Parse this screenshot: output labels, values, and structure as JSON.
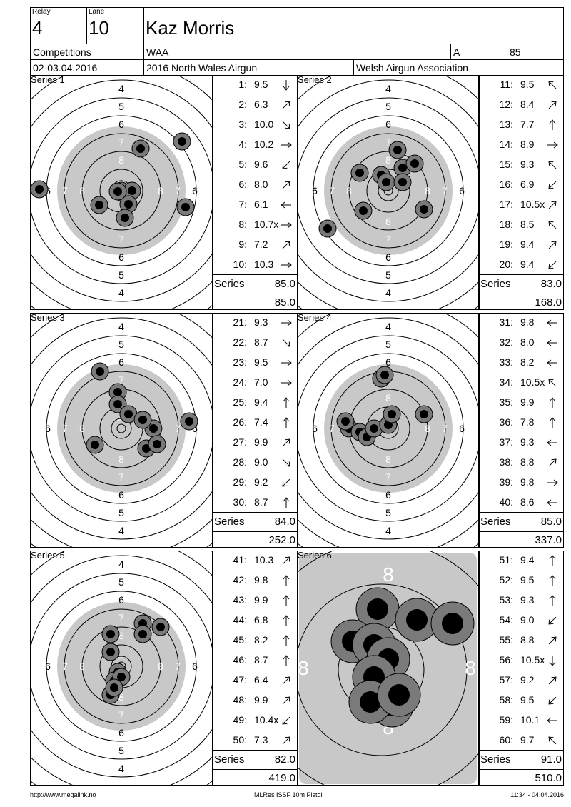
{
  "header": {
    "relay_label": "Relay",
    "relay_value": "4",
    "lane_label": "Lane",
    "lane_value": "10",
    "shooter_name": "Kaz Morris",
    "competitions_label": "Competitions",
    "competition_code": "WAA",
    "class_code": "A",
    "class_score": "85",
    "date": "02-03.04.2016",
    "event_name": "2016 North Wales Airgun",
    "organizer": "Welsh Airgun Association"
  },
  "series": [
    {
      "label": "Series 1",
      "series_label": "Series",
      "series_total": "85.0",
      "cumulative": "85.0",
      "shots": [
        {
          "n": "1:",
          "v": "9.5",
          "dir": "S"
        },
        {
          "n": "2:",
          "v": "6.3",
          "dir": "NE"
        },
        {
          "n": "3:",
          "v": "10.0",
          "dir": "SE"
        },
        {
          "n": "4:",
          "v": "10.2",
          "dir": "E"
        },
        {
          "n": "5:",
          "v": "9.6",
          "dir": "SW"
        },
        {
          "n": "6:",
          "v": "8.0",
          "dir": "NE"
        },
        {
          "n": "7:",
          "v": "6.1",
          "dir": "W"
        },
        {
          "n": "8:",
          "v": "10.7x",
          "dir": "E"
        },
        {
          "n": "9:",
          "v": "7.2",
          "dir": "NE"
        },
        {
          "n": "10:",
          "v": "10.3",
          "dir": "E"
        }
      ]
    },
    {
      "label": "Series 2",
      "series_label": "Series",
      "series_total": "83.0",
      "cumulative": "168.0",
      "shots": [
        {
          "n": "11:",
          "v": "9.5",
          "dir": "NW"
        },
        {
          "n": "12:",
          "v": "8.4",
          "dir": "NE"
        },
        {
          "n": "13:",
          "v": "7.7",
          "dir": "N"
        },
        {
          "n": "14:",
          "v": "8.9",
          "dir": "E"
        },
        {
          "n": "15:",
          "v": "9.3",
          "dir": "NW"
        },
        {
          "n": "16:",
          "v": "6.9",
          "dir": "SW"
        },
        {
          "n": "17:",
          "v": "10.5x",
          "dir": "NE"
        },
        {
          "n": "18:",
          "v": "8.5",
          "dir": "NW"
        },
        {
          "n": "19:",
          "v": "9.4",
          "dir": "NE"
        },
        {
          "n": "20:",
          "v": "9.4",
          "dir": "SW"
        }
      ]
    },
    {
      "label": "Series 3",
      "series_label": "Series",
      "series_total": "84.0",
      "cumulative": "252.0",
      "shots": [
        {
          "n": "21:",
          "v": "9.3",
          "dir": "E"
        },
        {
          "n": "22:",
          "v": "8.7",
          "dir": "SE"
        },
        {
          "n": "23:",
          "v": "9.5",
          "dir": "E"
        },
        {
          "n": "24:",
          "v": "7.0",
          "dir": "E"
        },
        {
          "n": "25:",
          "v": "9.4",
          "dir": "N"
        },
        {
          "n": "26:",
          "v": "7.4",
          "dir": "N"
        },
        {
          "n": "27:",
          "v": "9.9",
          "dir": "NE"
        },
        {
          "n": "28:",
          "v": "9.0",
          "dir": "SE"
        },
        {
          "n": "29:",
          "v": "9.2",
          "dir": "SW"
        },
        {
          "n": "30:",
          "v": "8.7",
          "dir": "N"
        }
      ]
    },
    {
      "label": "Series 4",
      "series_label": "Series",
      "series_total": "85.0",
      "cumulative": "337.0",
      "shots": [
        {
          "n": "31:",
          "v": "9.8",
          "dir": "W"
        },
        {
          "n": "32:",
          "v": "8.0",
          "dir": "W"
        },
        {
          "n": "33:",
          "v": "8.2",
          "dir": "W"
        },
        {
          "n": "34:",
          "v": "10.5x",
          "dir": "NW"
        },
        {
          "n": "35:",
          "v": "9.9",
          "dir": "N"
        },
        {
          "n": "36:",
          "v": "7.8",
          "dir": "N"
        },
        {
          "n": "37:",
          "v": "9.3",
          "dir": "W"
        },
        {
          "n": "38:",
          "v": "8.8",
          "dir": "NE"
        },
        {
          "n": "39:",
          "v": "9.8",
          "dir": "E"
        },
        {
          "n": "40:",
          "v": "8.6",
          "dir": "W"
        }
      ]
    },
    {
      "label": "Series 5",
      "series_label": "Series",
      "series_total": "82.0",
      "cumulative": "419.0",
      "shots": [
        {
          "n": "41:",
          "v": "10.3",
          "dir": "NE"
        },
        {
          "n": "42:",
          "v": "9.8",
          "dir": "N"
        },
        {
          "n": "43:",
          "v": "9.9",
          "dir": "N"
        },
        {
          "n": "44:",
          "v": "6.8",
          "dir": "N"
        },
        {
          "n": "45:",
          "v": "8.2",
          "dir": "N"
        },
        {
          "n": "46:",
          "v": "8.7",
          "dir": "N"
        },
        {
          "n": "47:",
          "v": "6.4",
          "dir": "NE"
        },
        {
          "n": "48:",
          "v": "9.9",
          "dir": "NE"
        },
        {
          "n": "49:",
          "v": "10.4x",
          "dir": "SW"
        },
        {
          "n": "50:",
          "v": "7.3",
          "dir": "NE"
        }
      ]
    },
    {
      "label": "Series 6",
      "series_label": "Series",
      "series_total": "91.0",
      "cumulative": "510.0",
      "shots": [
        {
          "n": "51:",
          "v": "9.4",
          "dir": "N"
        },
        {
          "n": "52:",
          "v": "9.5",
          "dir": "N"
        },
        {
          "n": "53:",
          "v": "9.3",
          "dir": "N"
        },
        {
          "n": "54:",
          "v": "9.0",
          "dir": "SW"
        },
        {
          "n": "55:",
          "v": "8.8",
          "dir": "NE"
        },
        {
          "n": "56:",
          "v": "10.5x",
          "dir": "S"
        },
        {
          "n": "57:",
          "v": "9.2",
          "dir": "NE"
        },
        {
          "n": "58:",
          "v": "9.5",
          "dir": "SW"
        },
        {
          "n": "59:",
          "v": "10.1",
          "dir": "W"
        },
        {
          "n": "60:",
          "v": "9.7",
          "dir": "NW"
        }
      ]
    }
  ],
  "footer": {
    "left": "http://www.megalink.no",
    "center": "MLRes ISSF 10m Pistol",
    "right": "11:34 - 04.04.2016"
  },
  "target_labels": {
    "r4": "4",
    "r5": "5",
    "r6": "6",
    "r7": "7",
    "r8": "8"
  }
}
